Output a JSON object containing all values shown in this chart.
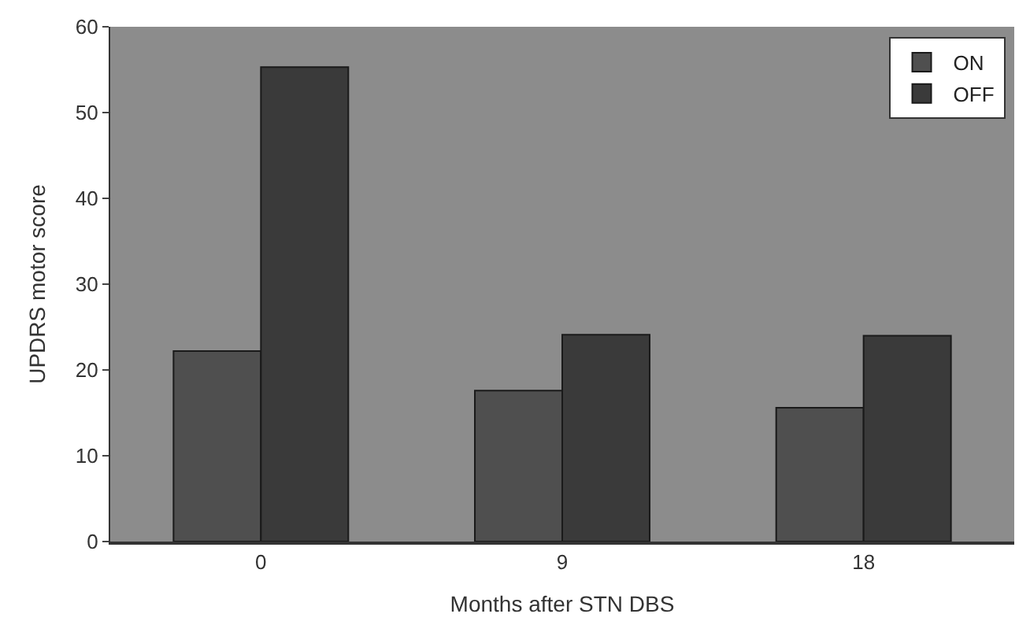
{
  "chart_data": {
    "type": "bar",
    "xlabel": "Months after STN DBS",
    "ylabel": "UPDRS motor score",
    "categories": [
      "0",
      "9",
      "18"
    ],
    "series": [
      {
        "name": "ON",
        "color": "#4f4f4f",
        "values": [
          22.2,
          17.6,
          15.6
        ]
      },
      {
        "name": "OFF",
        "color": "#3a3a3a",
        "values": [
          55.3,
          24.1,
          24.0
        ]
      }
    ],
    "ylim": [
      0,
      60
    ],
    "yticks": [
      0,
      10,
      20,
      30,
      40,
      50,
      60
    ],
    "grid": false,
    "legend": "top right"
  }
}
